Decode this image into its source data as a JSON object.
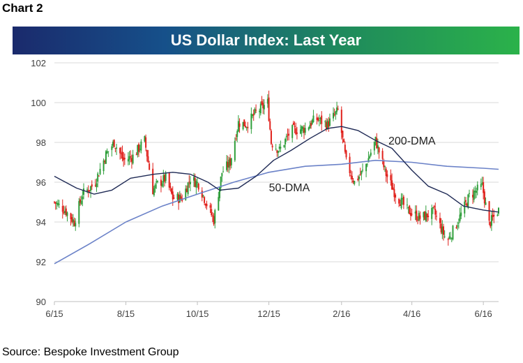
{
  "header": {
    "chart_label": "Chart 2"
  },
  "footer": {
    "source": "Source: Bespoke Investment Group"
  },
  "colors": {
    "up": "#2e9e3a",
    "down": "#e0201b",
    "dma50": "#1f2a55",
    "dma200": "#6b82c8"
  },
  "chart_data": {
    "type": "line",
    "title": "US Dollar Index: Last Year",
    "ylim": [
      90,
      102
    ],
    "yticks": [
      90,
      92,
      94,
      96,
      98,
      100,
      102
    ],
    "xlim": [
      "2015-06-01",
      "2016-06-14"
    ],
    "xticks": [
      {
        "label": "6/15",
        "date": "2015-06-01"
      },
      {
        "label": "8/15",
        "date": "2015-08-01"
      },
      {
        "label": "10/15",
        "date": "2015-10-01"
      },
      {
        "label": "12/15",
        "date": "2015-12-01"
      },
      {
        "label": "2/16",
        "date": "2016-02-01"
      },
      {
        "label": "4/16",
        "date": "2016-04-01"
      },
      {
        "label": "6/16",
        "date": "2016-06-01"
      }
    ],
    "series": [
      {
        "name": "50-DMA",
        "points": [
          [
            "2015-06-01",
            96.3
          ],
          [
            "2015-06-20",
            95.7
          ],
          [
            "2015-07-05",
            95.4
          ],
          [
            "2015-07-20",
            95.6
          ],
          [
            "2015-08-05",
            96.2
          ],
          [
            "2015-08-25",
            96.4
          ],
          [
            "2015-09-10",
            96.5
          ],
          [
            "2015-09-25",
            96.4
          ],
          [
            "2015-10-10",
            96.0
          ],
          [
            "2015-10-20",
            95.6
          ],
          [
            "2015-11-05",
            95.7
          ],
          [
            "2015-11-20",
            96.3
          ],
          [
            "2015-12-05",
            97.1
          ],
          [
            "2015-12-20",
            97.6
          ],
          [
            "2016-01-05",
            98.2
          ],
          [
            "2016-01-20",
            98.7
          ],
          [
            "2016-02-01",
            98.8
          ],
          [
            "2016-02-15",
            98.6
          ],
          [
            "2016-03-01",
            98.1
          ],
          [
            "2016-03-15",
            97.7
          ],
          [
            "2016-04-01",
            96.6
          ],
          [
            "2016-04-15",
            95.8
          ],
          [
            "2016-05-01",
            95.4
          ],
          [
            "2016-05-15",
            94.8
          ],
          [
            "2016-06-01",
            94.6
          ],
          [
            "2016-06-14",
            94.5
          ]
        ]
      },
      {
        "name": "200-DMA",
        "points": [
          [
            "2015-06-01",
            91.9
          ],
          [
            "2015-07-01",
            92.9
          ],
          [
            "2015-08-01",
            94.0
          ],
          [
            "2015-09-01",
            94.8
          ],
          [
            "2015-10-01",
            95.4
          ],
          [
            "2015-11-01",
            96.0
          ],
          [
            "2015-12-01",
            96.5
          ],
          [
            "2016-01-01",
            96.8
          ],
          [
            "2016-02-01",
            96.9
          ],
          [
            "2016-03-01",
            97.1
          ],
          [
            "2016-04-01",
            97.0
          ],
          [
            "2016-05-01",
            96.8
          ],
          [
            "2016-06-01",
            96.7
          ],
          [
            "2016-06-14",
            96.65
          ]
        ]
      },
      {
        "name": "Price",
        "points": [
          [
            "2015-06-01",
            95.0
          ],
          [
            "2015-06-10",
            94.6
          ],
          [
            "2015-06-18",
            94.0
          ],
          [
            "2015-06-25",
            95.4
          ],
          [
            "2015-07-05",
            95.9
          ],
          [
            "2015-07-15",
            97.4
          ],
          [
            "2015-07-22",
            98.0
          ],
          [
            "2015-07-30",
            97.1
          ],
          [
            "2015-08-07",
            97.3
          ],
          [
            "2015-08-17",
            98.1
          ],
          [
            "2015-08-24",
            95.6
          ],
          [
            "2015-08-28",
            95.9
          ],
          [
            "2015-09-04",
            96.2
          ],
          [
            "2015-09-10",
            95.2
          ],
          [
            "2015-09-18",
            95.2
          ],
          [
            "2015-09-25",
            96.2
          ],
          [
            "2015-10-02",
            95.9
          ],
          [
            "2015-10-09",
            94.9
          ],
          [
            "2015-10-15",
            94.1
          ],
          [
            "2015-10-22",
            96.5
          ],
          [
            "2015-10-29",
            97.0
          ],
          [
            "2015-11-05",
            99.0
          ],
          [
            "2015-11-12",
            98.9
          ],
          [
            "2015-11-20",
            99.5
          ],
          [
            "2015-11-30",
            100.0
          ],
          [
            "2015-12-03",
            98.0
          ],
          [
            "2015-12-10",
            97.6
          ],
          [
            "2015-12-20",
            98.6
          ],
          [
            "2016-01-01",
            98.7
          ],
          [
            "2016-01-10",
            99.2
          ],
          [
            "2016-01-20",
            98.9
          ],
          [
            "2016-01-29",
            99.6
          ],
          [
            "2016-02-05",
            97.0
          ],
          [
            "2016-02-12",
            96.0
          ],
          [
            "2016-02-20",
            96.6
          ],
          [
            "2016-03-01",
            98.1
          ],
          [
            "2016-03-10",
            96.4
          ],
          [
            "2016-03-18",
            95.4
          ],
          [
            "2016-03-28",
            94.6
          ],
          [
            "2016-04-08",
            94.2
          ],
          [
            "2016-04-20",
            94.5
          ],
          [
            "2016-05-01",
            93.0
          ],
          [
            "2016-05-10",
            94.0
          ],
          [
            "2016-05-20",
            95.3
          ],
          [
            "2016-05-31",
            95.8
          ],
          [
            "2016-06-06",
            93.9
          ],
          [
            "2016-06-14",
            94.6
          ]
        ]
      }
    ],
    "annotations": [
      {
        "text": "200-DMA",
        "date": "2016-03-12",
        "value": 97.9
      },
      {
        "text": "50-DMA",
        "date": "2015-12-01",
        "value": 95.55
      }
    ]
  }
}
